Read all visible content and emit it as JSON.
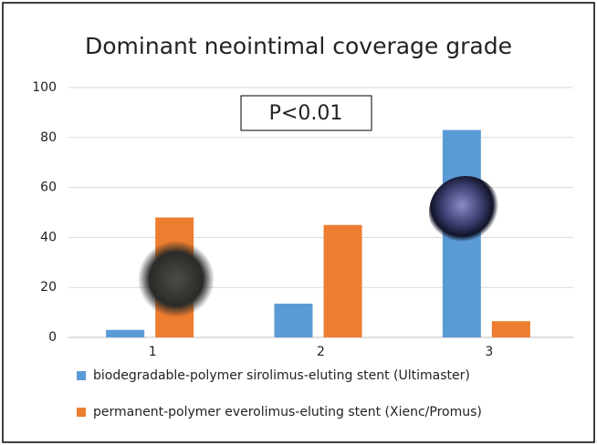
{
  "chart_data": {
    "type": "bar",
    "title": "Dominant neointimal coverage grade",
    "annotation": "P<0.01",
    "categories": [
      "1",
      "2",
      "3"
    ],
    "series": [
      {
        "name": "biodegradable-polymer sirolimus-eluting stent (Ultimaster)",
        "color": "#5b9bd5",
        "values": [
          3,
          13.5,
          83
        ]
      },
      {
        "name": "permanent-polymer everolimus-eluting stent (Xienc/Promus)",
        "color": "#ed7d31",
        "values": [
          48,
          45,
          6.5
        ]
      }
    ],
    "ylim": [
      0,
      100
    ],
    "yticks": [
      0,
      20,
      40,
      60,
      80,
      100
    ],
    "grid": true,
    "legend": "bottom"
  }
}
